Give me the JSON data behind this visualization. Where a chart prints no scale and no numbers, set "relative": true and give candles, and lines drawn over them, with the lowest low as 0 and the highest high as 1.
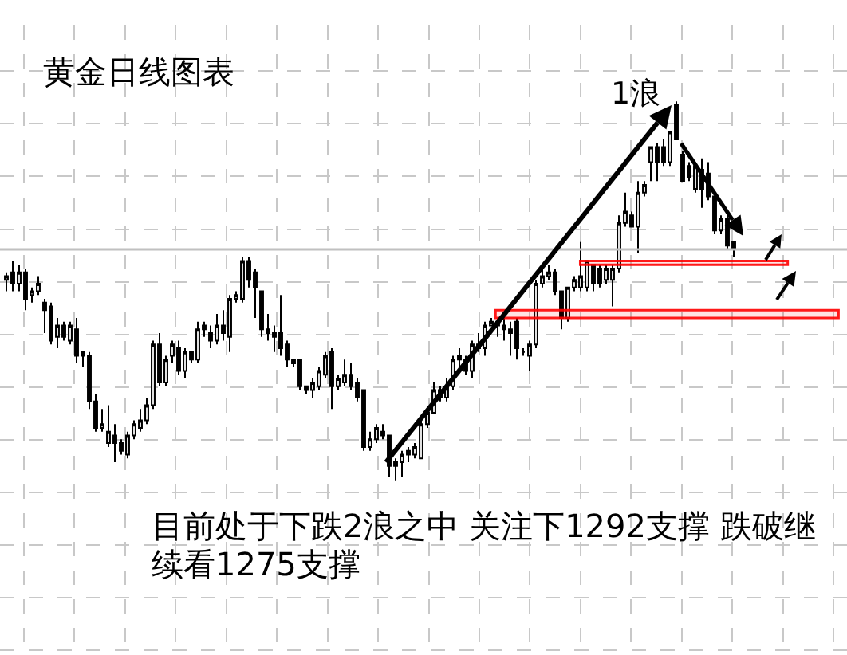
{
  "chart_data": {
    "type": "candlestick",
    "relative": true,
    "title": "黄金日线图表",
    "annotations": [
      "1浪",
      "目前处于下跌2浪之中 关注下1292支撑 跌破继续看1275支撑"
    ],
    "grid": true,
    "categories": [
      null,
      null,
      null,
      null,
      null,
      null,
      null,
      null,
      null,
      null,
      null,
      null,
      null,
      null,
      null,
      null,
      null,
      null,
      null,
      null,
      null,
      null,
      null,
      null,
      null,
      null,
      null,
      null,
      null,
      null,
      null,
      null,
      null,
      null,
      null,
      null,
      null,
      null,
      null,
      null,
      null,
      null,
      null,
      null,
      null,
      null,
      null,
      null,
      null,
      null,
      null,
      null,
      null,
      null,
      null,
      null,
      null,
      null,
      null,
      null,
      null,
      null,
      null,
      null,
      null,
      null,
      null,
      null,
      null,
      null,
      null,
      null,
      null,
      null,
      null,
      null,
      null,
      null,
      null,
      null,
      null,
      null,
      null,
      null,
      null,
      null,
      null,
      null,
      null,
      null,
      null,
      null,
      null,
      null,
      null,
      null,
      null,
      null,
      null,
      null,
      null,
      null,
      null,
      null,
      null,
      null,
      null,
      null,
      null,
      null,
      null,
      null,
      null,
      null,
      null
    ],
    "ohlc": [
      [
        0.53,
        0.55,
        0.5,
        0.54
      ],
      [
        0.55,
        0.58,
        0.5,
        0.52
      ],
      [
        0.52,
        0.57,
        0.5,
        0.55
      ],
      [
        0.55,
        0.56,
        0.45,
        0.48
      ],
      [
        0.49,
        0.51,
        0.47,
        0.5
      ],
      [
        0.5,
        0.54,
        0.49,
        0.52
      ],
      [
        0.47,
        0.48,
        0.39,
        0.45
      ],
      [
        0.46,
        0.47,
        0.36,
        0.37
      ],
      [
        0.38,
        0.43,
        0.35,
        0.41
      ],
      [
        0.41,
        0.42,
        0.37,
        0.38
      ],
      [
        0.37,
        0.42,
        0.36,
        0.41
      ],
      [
        0.4,
        0.43,
        0.31,
        0.33
      ],
      [
        0.34,
        0.34,
        0.3,
        0.33
      ],
      [
        0.33,
        0.34,
        0.19,
        0.21
      ],
      [
        0.21,
        0.23,
        0.13,
        0.14
      ],
      [
        0.14,
        0.19,
        0.13,
        0.15
      ],
      [
        0.1,
        0.2,
        0.09,
        0.13
      ],
      [
        0.12,
        0.15,
        0.05,
        0.1
      ],
      [
        0.1,
        0.11,
        0.07,
        0.08
      ],
      [
        0.07,
        0.13,
        0.06,
        0.12
      ],
      [
        0.12,
        0.16,
        0.11,
        0.15
      ],
      [
        0.14,
        0.19,
        0.13,
        0.16
      ],
      [
        0.16,
        0.22,
        0.15,
        0.2
      ],
      [
        0.2,
        0.37,
        0.19,
        0.36
      ],
      [
        0.36,
        0.39,
        0.25,
        0.26
      ],
      [
        0.26,
        0.33,
        0.25,
        0.32
      ],
      [
        0.33,
        0.37,
        0.31,
        0.36
      ],
      [
        0.35,
        0.37,
        0.28,
        0.29
      ],
      [
        0.29,
        0.35,
        0.27,
        0.34
      ],
      [
        0.34,
        0.34,
        0.31,
        0.32
      ],
      [
        0.32,
        0.42,
        0.31,
        0.4
      ],
      [
        0.41,
        0.42,
        0.38,
        0.4
      ],
      [
        0.39,
        0.41,
        0.35,
        0.37
      ],
      [
        0.37,
        0.44,
        0.36,
        0.41
      ],
      [
        0.41,
        0.45,
        0.37,
        0.39
      ],
      [
        0.38,
        0.49,
        0.34,
        0.48
      ],
      [
        0.48,
        0.5,
        0.47,
        0.49
      ],
      [
        0.48,
        0.59,
        0.47,
        0.58
      ],
      [
        0.58,
        0.59,
        0.51,
        0.53
      ],
      [
        0.55,
        0.56,
        0.43,
        0.51
      ],
      [
        0.5,
        0.5,
        0.38,
        0.4
      ],
      [
        0.4,
        0.44,
        0.37,
        0.39
      ],
      [
        0.39,
        0.41,
        0.34,
        0.38
      ],
      [
        0.39,
        0.49,
        0.33,
        0.35
      ],
      [
        0.36,
        0.37,
        0.3,
        0.32
      ],
      [
        0.32,
        0.32,
        0.3,
        0.31
      ],
      [
        0.32,
        0.32,
        0.24,
        0.25
      ],
      [
        0.25,
        0.25,
        0.23,
        0.24
      ],
      [
        0.24,
        0.27,
        0.22,
        0.26
      ],
      [
        0.25,
        0.3,
        0.24,
        0.29
      ],
      [
        0.28,
        0.34,
        0.27,
        0.33
      ],
      [
        0.34,
        0.35,
        0.19,
        0.25
      ],
      [
        0.25,
        0.28,
        0.24,
        0.27
      ],
      [
        0.26,
        0.32,
        0.25,
        0.28
      ],
      [
        0.28,
        0.31,
        0.24,
        0.25
      ],
      [
        0.26,
        0.27,
        0.21,
        0.22
      ],
      [
        0.24,
        0.24,
        0.08,
        0.09
      ],
      [
        0.09,
        0.13,
        0.08,
        0.11
      ],
      [
        0.11,
        0.15,
        0.1,
        0.14
      ],
      [
        0.13,
        0.15,
        0.11,
        0.12
      ],
      [
        0.12,
        0.12,
        0.01,
        0.04
      ],
      [
        0.04,
        0.06,
        0,
        0.05
      ],
      [
        0.05,
        0.08,
        0.01,
        0.07
      ],
      [
        0.08,
        0.09,
        0.05,
        0.07
      ],
      [
        0.07,
        0.1,
        0.06,
        0.09
      ],
      [
        0.06,
        0.16,
        0.06,
        0.15
      ],
      [
        0.15,
        0.19,
        0.14,
        0.18
      ],
      [
        0.18,
        0.26,
        0.18,
        0.24
      ],
      [
        0.24,
        0.25,
        0.21,
        0.22
      ],
      [
        0.22,
        0.27,
        0.21,
        0.25
      ],
      [
        0.25,
        0.33,
        0.24,
        0.32
      ],
      [
        0.33,
        0.35,
        0.29,
        0.32
      ],
      [
        0.32,
        0.33,
        0.28,
        0.29
      ],
      [
        0.29,
        0.37,
        0.27,
        0.36
      ],
      [
        0.35,
        0.39,
        0.34,
        0.36
      ],
      [
        0.35,
        0.42,
        0.33,
        0.41
      ],
      [
        0.41,
        0.43,
        0.41,
        0.42
      ],
      [
        0.41,
        0.43,
        0.38,
        0.42
      ],
      [
        0.41,
        0.43,
        0.37,
        0.4
      ],
      [
        0.4,
        0.42,
        0.33,
        0.39
      ],
      [
        0.42,
        0.43,
        0.32,
        0.35
      ],
      [
        0.34,
        0.35,
        0.33,
        0.34
      ],
      [
        0.33,
        0.37,
        0.29,
        0.36
      ],
      [
        0.36,
        0.53,
        0.35,
        0.52
      ],
      [
        0.52,
        0.56,
        0.51,
        0.54
      ],
      [
        0.54,
        0.57,
        0.53,
        0.55
      ],
      [
        0.55,
        0.56,
        0.49,
        0.5
      ],
      [
        0.5,
        0.5,
        0.4,
        0.43
      ],
      [
        0.43,
        0.51,
        0.42,
        0.51
      ],
      [
        0.51,
        0.54,
        0.5,
        0.53
      ],
      [
        0.51,
        0.63,
        0.5,
        0.54
      ],
      [
        0.51,
        0.58,
        0.5,
        0.58
      ],
      [
        0.57,
        0.57,
        0.5,
        0.52
      ],
      [
        0.56,
        0.57,
        0.51,
        0.52
      ],
      [
        0.53,
        0.57,
        0.52,
        0.56
      ],
      [
        0.53,
        0.57,
        0.46,
        0.56
      ],
      [
        0.56,
        0.7,
        0.55,
        0.68
      ],
      [
        0.68,
        0.76,
        0.67,
        0.71
      ],
      [
        0.7,
        0.71,
        0.67,
        0.67
      ],
      [
        0.67,
        0.79,
        0.6,
        0.76
      ],
      [
        0.76,
        0.79,
        0.75,
        0.78
      ],
      [
        0.84,
        0.88,
        0.79,
        0.88
      ],
      [
        0.88,
        0.89,
        0.79,
        0.84
      ],
      [
        0.88,
        0.9,
        0.83,
        0.84
      ],
      [
        0.84,
        0.92,
        0.83,
        0.92
      ],
      [
        0.99,
        1,
        0.9,
        0.9
      ],
      [
        0.86,
        0.87,
        0.79,
        0.79
      ],
      [
        0.83,
        0.84,
        0.79,
        0.8
      ],
      [
        0.77,
        0.84,
        0.76,
        0.83
      ],
      [
        0.82,
        0.85,
        0.72,
        0.77
      ],
      [
        0.81,
        0.84,
        0.74,
        0.75
      ],
      [
        0.75,
        0.75,
        0.65,
        0.66
      ],
      [
        0.66,
        0.7,
        0.65,
        0.69
      ],
      [
        0.69,
        0.7,
        0.61,
        0.62
      ],
      [
        0.63,
        0.63,
        0.59,
        0.61
      ]
    ],
    "bands": [
      {
        "axis": "y",
        "from": 0.57,
        "to": 0.58,
        "color": "#ff0000"
      },
      {
        "axis": "y",
        "from": 0.43,
        "to": 0.45,
        "color": "#ff0000"
      }
    ],
    "ref_lines": [
      {
        "axis": "y",
        "value": 0.61,
        "color": "#c0c0c0"
      }
    ]
  }
}
